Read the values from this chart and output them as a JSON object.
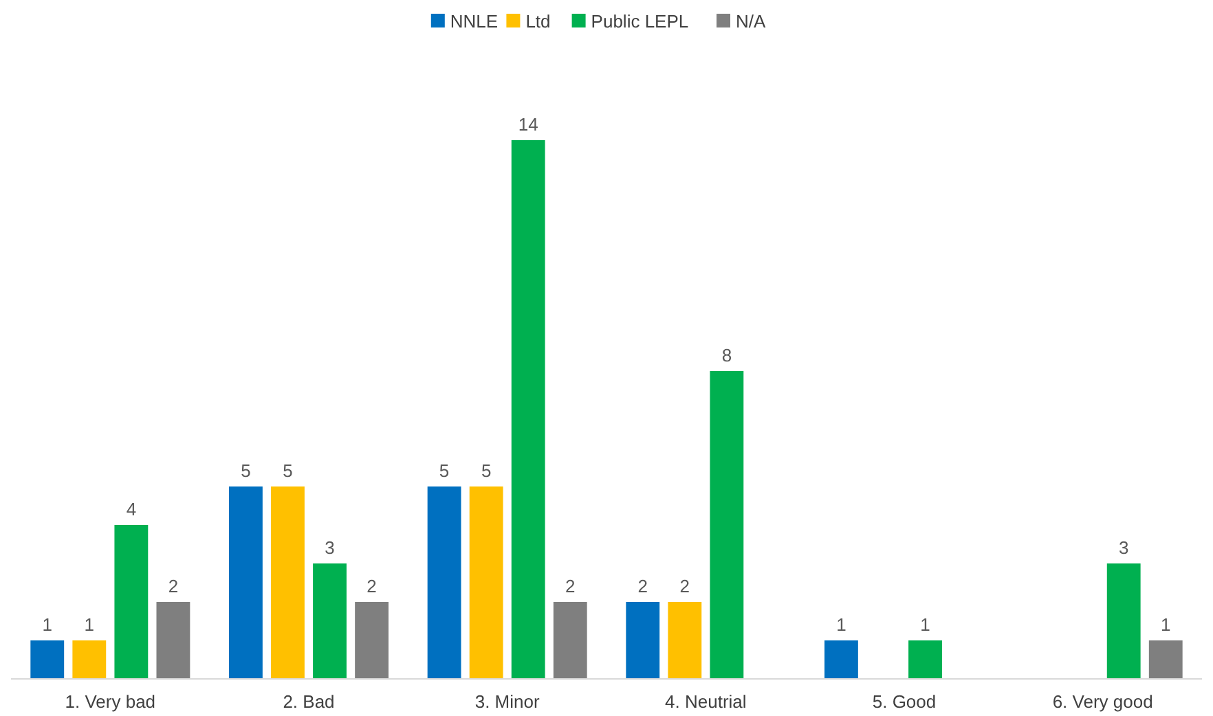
{
  "chart_data": {
    "type": "bar",
    "categories": [
      "1. Very bad",
      "2. Bad",
      "3. Minor",
      "4. Neutrial",
      "5. Good",
      "6. Very good"
    ],
    "series": [
      {
        "name": "NNLE",
        "color": "#0070c0",
        "values": [
          1,
          5,
          5,
          2,
          1,
          null
        ]
      },
      {
        "name": "Ltd",
        "color": "#ffc000",
        "values": [
          1,
          5,
          5,
          2,
          null,
          null
        ]
      },
      {
        "name": "Public LEPL",
        "color": "#00b050",
        "values": [
          4,
          3,
          14,
          8,
          1,
          3
        ]
      },
      {
        "name": "N/A",
        "color": "#7f7f7f",
        "values": [
          2,
          2,
          2,
          null,
          null,
          1
        ]
      }
    ],
    "data_labels": true,
    "legend": "top"
  }
}
